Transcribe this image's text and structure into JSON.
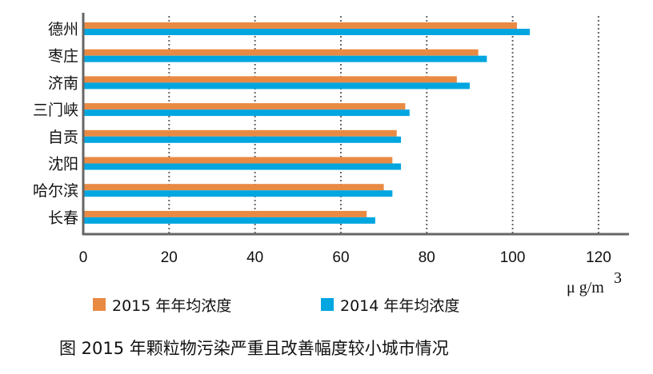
{
  "chart_data": {
    "type": "bar",
    "orientation": "horizontal",
    "title": "图 2015 年颗粒物污染严重且改善幅度较小城市情况",
    "categories": [
      "德州",
      "枣庄",
      "济南",
      "三门峡",
      "自贡",
      "沈阳",
      "哈尔滨",
      "长春"
    ],
    "series": [
      {
        "name": "2015 年年均浓度",
        "color": "#E98A43",
        "values": [
          101,
          92,
          87,
          75,
          73,
          72,
          70,
          66
        ]
      },
      {
        "name": "2014 年年均浓度",
        "color": "#00A6E0",
        "values": [
          104,
          94,
          90,
          76,
          74,
          74,
          72,
          68
        ]
      }
    ],
    "xlabel": "μ g/m",
    "xlabel_sup": "3",
    "xlim": [
      0,
      120
    ],
    "xticks": [
      "0",
      "20",
      "40",
      "60",
      "80",
      "100",
      "120"
    ],
    "grid": "vertical dotted",
    "legend_position": "bottom"
  }
}
